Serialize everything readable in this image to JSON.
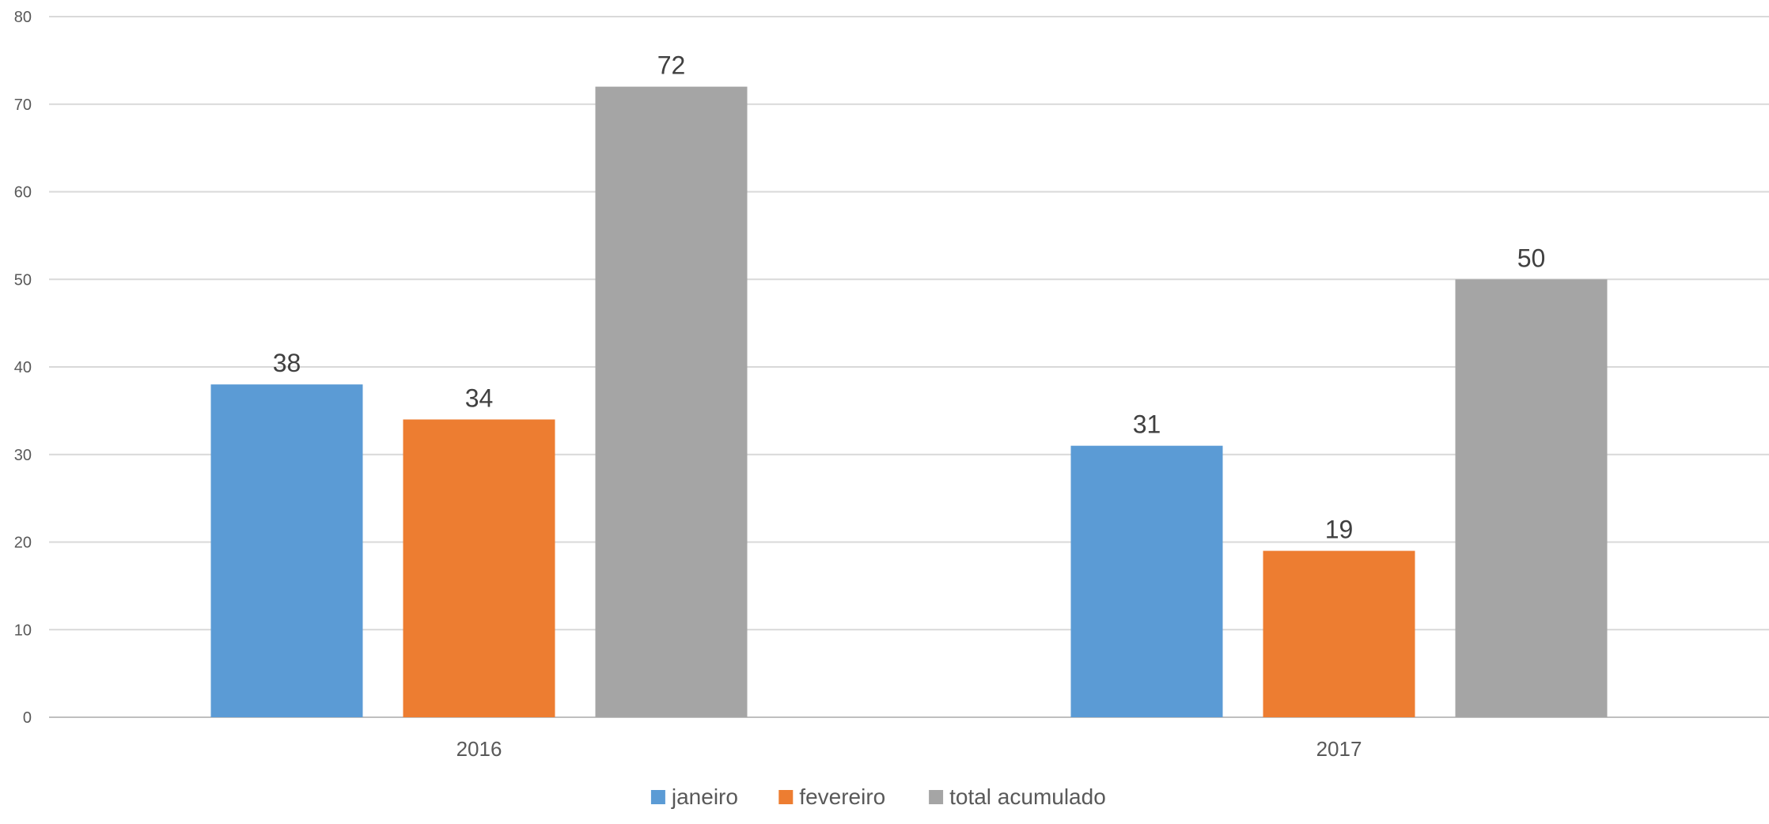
{
  "chart_data": {
    "type": "bar",
    "title": "",
    "xlabel": "",
    "ylabel": "",
    "categories": [
      "2016",
      "2017"
    ],
    "series": [
      {
        "name": "janeiro",
        "values": [
          38,
          31
        ],
        "color": "#5B9BD5"
      },
      {
        "name": "fevereiro",
        "values": [
          34,
          19
        ],
        "color": "#ED7D31"
      },
      {
        "name": "total acumulado",
        "values": [
          72,
          50
        ],
        "color": "#A5A5A5"
      }
    ],
    "ylim": [
      0,
      80
    ],
    "yticks": [
      0,
      10,
      20,
      30,
      40,
      50,
      60,
      70,
      80
    ],
    "grid": true,
    "legend_position": "bottom",
    "data_labels": true
  }
}
